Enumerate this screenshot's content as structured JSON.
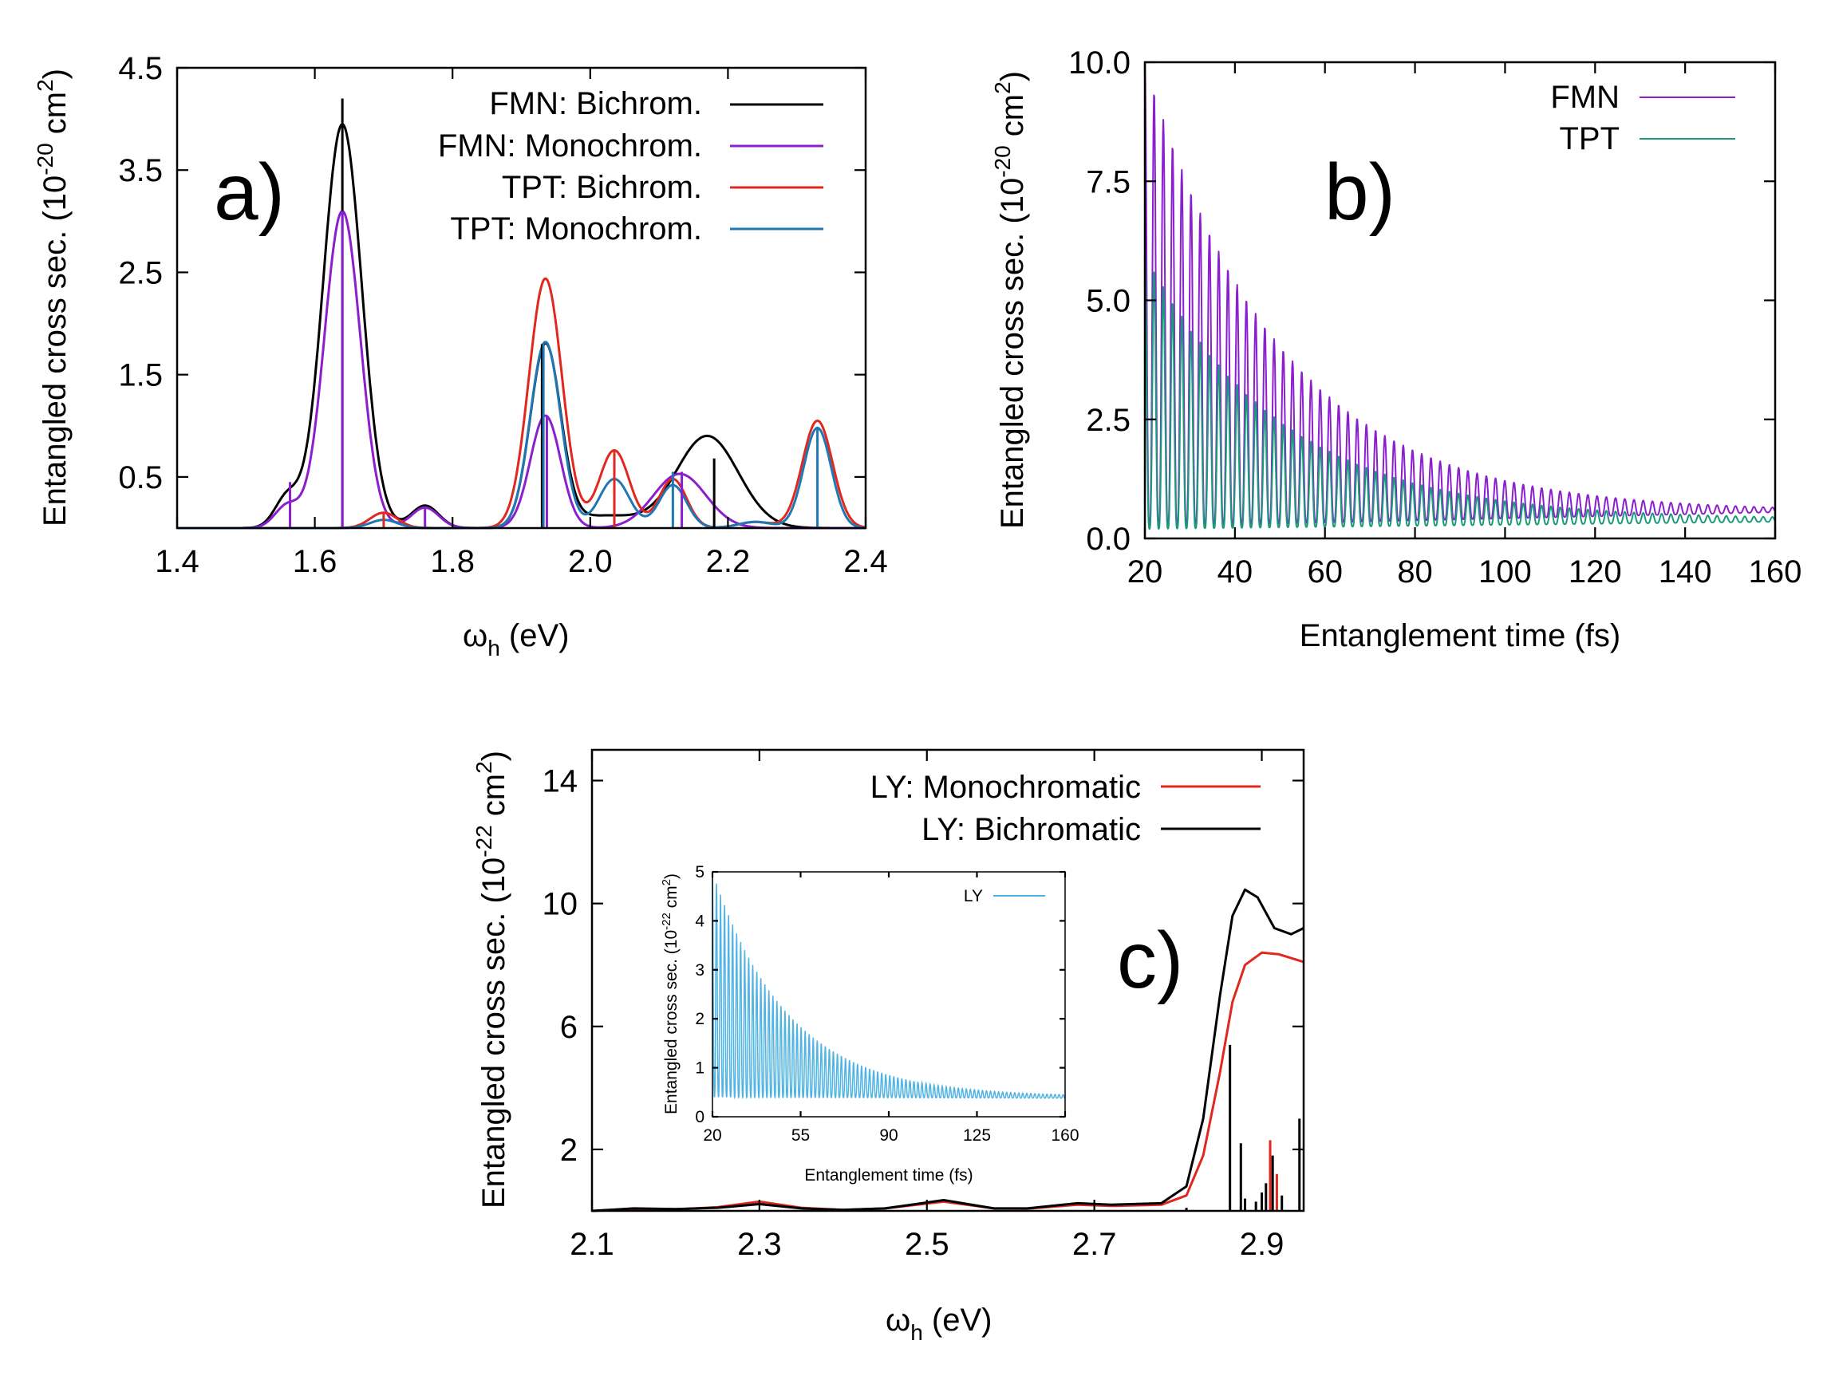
{
  "chart_data": [
    {
      "id": "a",
      "type": "line",
      "panel_label": "a)",
      "xlabel_main": "ω",
      "xlabel_sub": "h",
      "xlabel_rest": " (eV)",
      "ylabel_main": "Entangled cross sec. (10",
      "ylabel_exp": "-20",
      "ylabel_mid": " cm",
      "ylabel_exp2": "2",
      "ylabel_end": ")",
      "xlim": [
        1.4,
        2.4
      ],
      "ylim": [
        0,
        4.5
      ],
      "xticks": [
        1.4,
        1.6,
        1.8,
        2.0,
        2.2,
        2.4
      ],
      "xtick_labels": [
        "1.4",
        "1.6",
        "1.8",
        "2.0",
        "2.2",
        "2.4"
      ],
      "yticks": [
        0.5,
        1.5,
        2.5,
        3.5,
        4.5
      ],
      "ytick_labels": [
        "0.5",
        "1.5",
        "2.5",
        "3.5",
        "4.5"
      ],
      "legend_position": "top-right",
      "series": [
        {
          "name": "FMN: Bichrom.",
          "color": "#000000",
          "peaks": [
            [
              1.56,
              0.3,
              0.018
            ],
            [
              1.64,
              3.95,
              0.028
            ],
            [
              1.76,
              0.22,
              0.02
            ],
            [
              1.935,
              1.78,
              0.022
            ],
            [
              2.02,
              0.12,
              0.05
            ],
            [
              2.17,
              0.9,
              0.045
            ]
          ]
        },
        {
          "name": "FMN: Monochrom.",
          "color": "#8B1FCF",
          "peaks": [
            [
              1.56,
              0.22,
              0.018
            ],
            [
              1.64,
              3.1,
              0.026
            ],
            [
              1.76,
              0.2,
              0.02
            ],
            [
              1.935,
              1.1,
              0.022
            ],
            [
              2.13,
              0.53,
              0.038
            ]
          ]
        },
        {
          "name": "TPT: Bichrom.",
          "color": "#E0281E",
          "peaks": [
            [
              1.7,
              0.15,
              0.02
            ],
            [
              1.935,
              2.44,
              0.024
            ],
            [
              2.035,
              0.76,
              0.022
            ],
            [
              2.12,
              0.48,
              0.02
            ],
            [
              2.24,
              0.06,
              0.025
            ],
            [
              2.33,
              1.05,
              0.022
            ]
          ]
        },
        {
          "name": "TPT: Monochrom.",
          "color": "#1F77B4",
          "peaks": [
            [
              1.7,
              0.08,
              0.02
            ],
            [
              1.935,
              1.82,
              0.022
            ],
            [
              2.035,
              0.48,
              0.022
            ],
            [
              2.12,
              0.42,
              0.02
            ],
            [
              2.24,
              0.06,
              0.025
            ],
            [
              2.33,
              0.98,
              0.02
            ]
          ]
        }
      ],
      "sticks": [
        {
          "x": 1.564,
          "y": 0.45,
          "color": "#8B1FCF"
        },
        {
          "x": 1.64,
          "y": 4.2,
          "color": "#000000"
        },
        {
          "x": 1.64,
          "y": 3.1,
          "color": "#8B1FCF"
        },
        {
          "x": 1.7,
          "y": 0.15,
          "color": "#E0281E"
        },
        {
          "x": 1.76,
          "y": 0.2,
          "color": "#8B1FCF"
        },
        {
          "x": 1.93,
          "y": 1.8,
          "color": "#000000"
        },
        {
          "x": 1.932,
          "y": 1.8,
          "color": "#1F77B4"
        },
        {
          "x": 1.937,
          "y": 1.1,
          "color": "#8B1FCF"
        },
        {
          "x": 2.035,
          "y": 0.75,
          "color": "#E0281E"
        },
        {
          "x": 2.12,
          "y": 0.55,
          "color": "#1F77B4"
        },
        {
          "x": 2.133,
          "y": 0.55,
          "color": "#8B1FCF"
        },
        {
          "x": 2.18,
          "y": 0.68,
          "color": "#000000"
        },
        {
          "x": 2.33,
          "y": 0.98,
          "color": "#1F77B4"
        }
      ]
    },
    {
      "id": "b",
      "type": "line",
      "panel_label": "b)",
      "xlabel": "Entanglement time (fs)",
      "ylabel_main": "Entangled cross sec. (10",
      "ylabel_exp": "-20",
      "ylabel_mid": " cm",
      "ylabel_exp2": "2",
      "ylabel_end": ")",
      "xlim": [
        20,
        160
      ],
      "ylim": [
        0,
        10
      ],
      "xticks": [
        20,
        40,
        60,
        80,
        100,
        120,
        140,
        160
      ],
      "xtick_labels": [
        "20",
        "40",
        "60",
        "80",
        "100",
        "120",
        "140",
        "160"
      ],
      "yticks": [
        0,
        2.5,
        5,
        7.5,
        10
      ],
      "ytick_labels": [
        "0.0",
        "2.5",
        "5.0",
        "7.5",
        "10.0"
      ],
      "legend_position": "top-right",
      "series": [
        {
          "name": "FMN",
          "color": "#8B1FCF",
          "envelope_start": 10.0,
          "envelope_end": 0.65,
          "min_start": 0.25,
          "min_end": 0.55,
          "period_fs": 2.05
        },
        {
          "name": "TPT",
          "color": "#1A9A7A",
          "envelope_start": 6.0,
          "envelope_end": 0.45,
          "min_start": 0.2,
          "min_end": 0.35,
          "period_fs": 2.05
        }
      ]
    },
    {
      "id": "c",
      "type": "line",
      "panel_label": "c)",
      "xlabel_main": "ω",
      "xlabel_sub": "h",
      "xlabel_rest": " (eV)",
      "ylabel_main": "Entangled cross sec. (10",
      "ylabel_exp": "-22",
      "ylabel_mid": " cm",
      "ylabel_exp2": "2",
      "ylabel_end": ")",
      "xlim": [
        2.1,
        2.95
      ],
      "ylim": [
        0,
        15
      ],
      "xticks": [
        2.1,
        2.3,
        2.5,
        2.7,
        2.9
      ],
      "xtick_labels": [
        "2.1",
        "2.3",
        "2.5",
        "2.7",
        "2.9"
      ],
      "yticks": [
        2,
        6,
        10,
        14
      ],
      "ytick_labels": [
        "2",
        "6",
        "10",
        "14"
      ],
      "legend_position": "top-right",
      "series": [
        {
          "name": "LY: Monochromatic",
          "color": "#E0281E",
          "points": [
            [
              2.1,
              0.0
            ],
            [
              2.15,
              0.05
            ],
            [
              2.2,
              0.05
            ],
            [
              2.25,
              0.12
            ],
            [
              2.3,
              0.3
            ],
            [
              2.35,
              0.1
            ],
            [
              2.4,
              0.03
            ],
            [
              2.45,
              0.08
            ],
            [
              2.52,
              0.3
            ],
            [
              2.58,
              0.08
            ],
            [
              2.62,
              0.07
            ],
            [
              2.68,
              0.2
            ],
            [
              2.72,
              0.16
            ],
            [
              2.78,
              0.2
            ],
            [
              2.81,
              0.5
            ],
            [
              2.83,
              1.8
            ],
            [
              2.85,
              4.5
            ],
            [
              2.865,
              6.8
            ],
            [
              2.88,
              8.0
            ],
            [
              2.9,
              8.4
            ],
            [
              2.92,
              8.35
            ],
            [
              2.95,
              8.1
            ]
          ]
        },
        {
          "name": "LY: Bichromatic",
          "color": "#000000",
          "points": [
            [
              2.1,
              0.0
            ],
            [
              2.15,
              0.08
            ],
            [
              2.2,
              0.06
            ],
            [
              2.25,
              0.1
            ],
            [
              2.3,
              0.22
            ],
            [
              2.35,
              0.08
            ],
            [
              2.4,
              0.03
            ],
            [
              2.45,
              0.08
            ],
            [
              2.52,
              0.35
            ],
            [
              2.58,
              0.08
            ],
            [
              2.62,
              0.08
            ],
            [
              2.68,
              0.25
            ],
            [
              2.72,
              0.2
            ],
            [
              2.78,
              0.25
            ],
            [
              2.81,
              0.8
            ],
            [
              2.83,
              3.0
            ],
            [
              2.85,
              7.0
            ],
            [
              2.865,
              9.6
            ],
            [
              2.88,
              10.45
            ],
            [
              2.895,
              10.2
            ],
            [
              2.915,
              9.2
            ],
            [
              2.935,
              9.0
            ],
            [
              2.95,
              9.2
            ]
          ]
        }
      ],
      "sticks": [
        {
          "x": 2.81,
          "y": 0.1,
          "color": "#000000"
        },
        {
          "x": 2.862,
          "y": 5.4,
          "color": "#000000"
        },
        {
          "x": 2.875,
          "y": 2.2,
          "color": "#000000"
        },
        {
          "x": 2.88,
          "y": 0.4,
          "color": "#000000"
        },
        {
          "x": 2.893,
          "y": 0.3,
          "color": "#000000"
        },
        {
          "x": 2.9,
          "y": 0.6,
          "color": "#000000"
        },
        {
          "x": 2.905,
          "y": 0.9,
          "color": "#000000"
        },
        {
          "x": 2.91,
          "y": 2.3,
          "color": "#E0281E"
        },
        {
          "x": 2.913,
          "y": 1.8,
          "color": "#000000"
        },
        {
          "x": 2.918,
          "y": 1.2,
          "color": "#E0281E"
        },
        {
          "x": 2.924,
          "y": 0.5,
          "color": "#000000"
        },
        {
          "x": 2.945,
          "y": 3.0,
          "color": "#000000"
        }
      ],
      "inset": {
        "type": "line",
        "xlabel": "Entanglement time (fs)",
        "ylabel_main": "Entangled cross sec. (10",
        "ylabel_exp": "-22",
        "ylabel_mid": " cm",
        "ylabel_exp2": "2",
        "ylabel_end": ")",
        "xlim": [
          20,
          160
        ],
        "ylim": [
          0,
          5
        ],
        "xticks": [
          20,
          55,
          90,
          125,
          160
        ],
        "xtick_labels": [
          "20",
          "55",
          "90",
          "125",
          "160"
        ],
        "yticks": [
          0,
          1,
          2,
          3,
          4,
          5
        ],
        "ytick_labels": [
          "0",
          "1",
          "2",
          "3",
          "4",
          "5"
        ],
        "series": [
          {
            "name": "LY",
            "color": "#4FB3E3",
            "envelope_start": 5.0,
            "envelope_end": 0.45,
            "min_start": 0.4,
            "min_end": 0.38,
            "period_fs": 1.6
          }
        ]
      }
    }
  ]
}
